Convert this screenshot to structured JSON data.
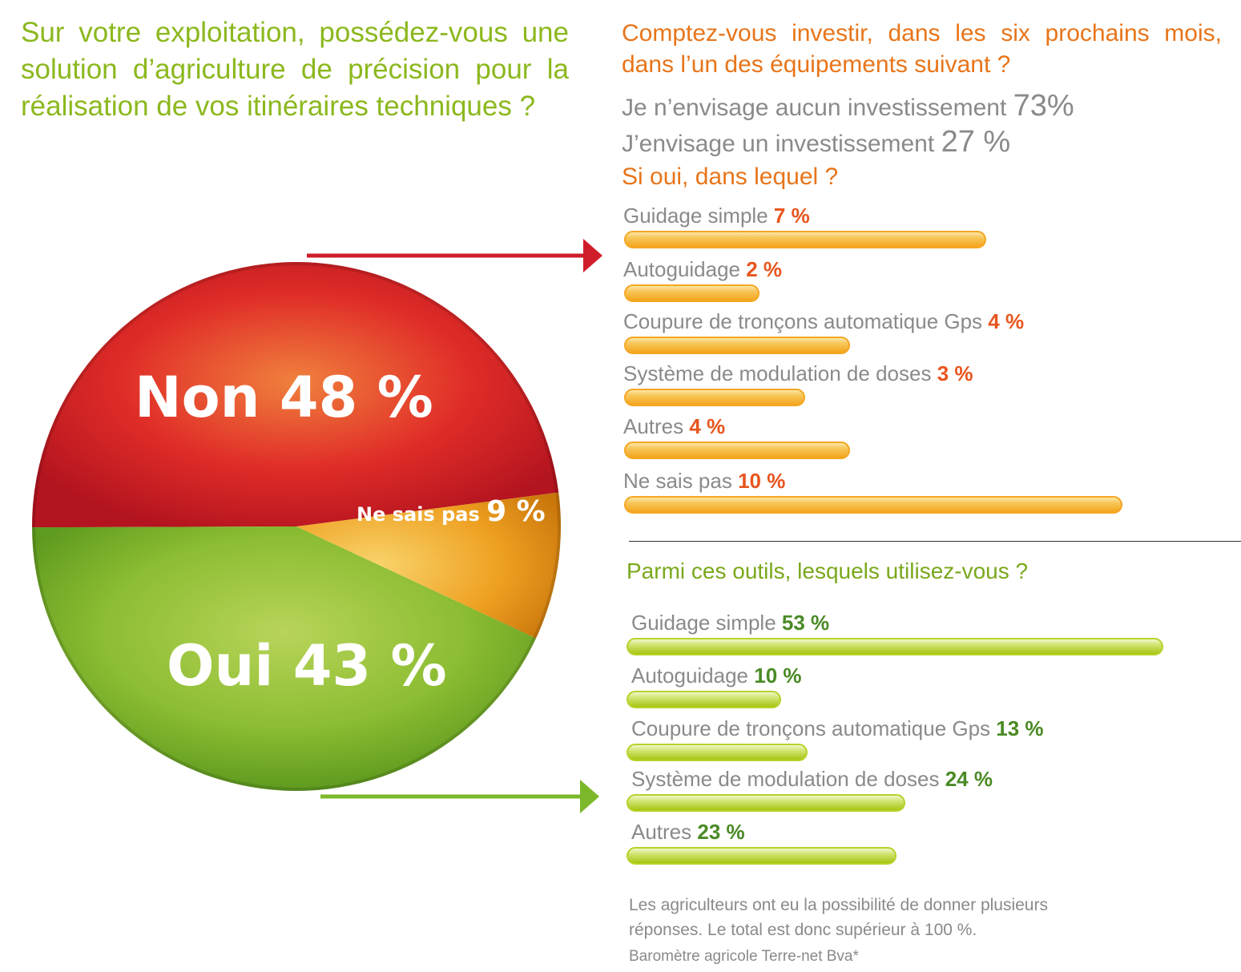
{
  "left_question": "Sur votre exploitation, possédez-vous une solution d’agriculture de précision pour la réalisation de vos itinéraires techniques ?",
  "colors": {
    "non": "#d9232a",
    "oui": "#7fb52b",
    "nsp": "#eea021",
    "orange_text": "#e8751a",
    "green_text": "#8cb81e",
    "grey_text": "#8a8a8a"
  },
  "pie_labels": {
    "non": "Non 48 %",
    "oui": "Oui 43 %",
    "nsp_text": "Ne sais pas",
    "nsp_value": "9 %"
  },
  "invest": {
    "question": "Comptez-vous investir, dans les six prochains mois, dans l’un des équipements suivant ?",
    "none_label": "Je n’envisage aucun investissement",
    "none_value": "73%",
    "one_label": "J’envisage un investissement",
    "one_value": "27 %",
    "which": "Si oui, dans lequel ?"
  },
  "use_question": "Parmi ces outils, lesquels utilisez-vous ?",
  "note_line1": "Les agriculteurs ont eu la possibilité de donner plusieurs",
  "note_line2": "réponses. Le total est donc supérieur à 100 %.",
  "source": "Baromètre agricole Terre-net Bva*",
  "chart_data": [
    {
      "type": "pie",
      "title": "Sur votre exploitation, possédez-vous une solution d’agriculture de précision pour la réalisation de vos itinéraires techniques ?",
      "categories": [
        "Non",
        "Oui",
        "Ne sais pas"
      ],
      "values": [
        48,
        43,
        9
      ],
      "colors": [
        "#d9232a",
        "#7fb52b",
        "#eea021"
      ]
    },
    {
      "type": "bar",
      "title": "Si oui, dans lequel ?",
      "categories": [
        "Guidage simple",
        "Autoguidage",
        "Coupure de tronçons automatique Gps",
        "Système de modulation de doses",
        "Autres",
        "Ne sais pas"
      ],
      "values": [
        7,
        2,
        4,
        3,
        4,
        10
      ],
      "value_labels": [
        "7 %",
        "2 %",
        "4 %",
        "3 %",
        "4 %",
        "10 %"
      ]
    },
    {
      "type": "bar",
      "title": "Parmi ces outils, lesquels utilisez-vous ?",
      "categories": [
        "Guidage simple",
        "Autoguidage",
        "Coupure de tronçons automatique Gps",
        "Système de modulation de doses",
        "Autres"
      ],
      "values": [
        53,
        10,
        13,
        24,
        23
      ],
      "value_labels": [
        "53 %",
        "10 %",
        "13 %",
        "24 %",
        "23 %"
      ]
    }
  ]
}
